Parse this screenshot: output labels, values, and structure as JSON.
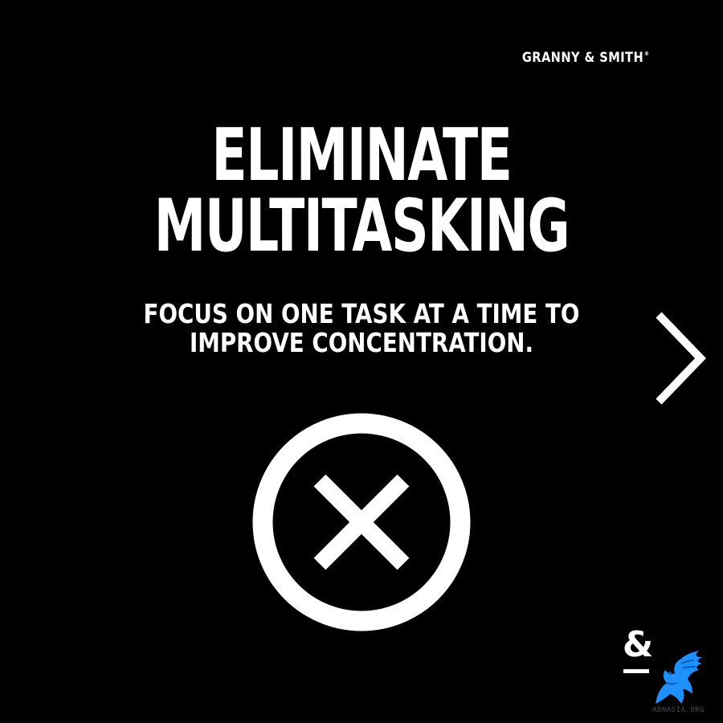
{
  "brand": {
    "name": "GRANNY & SMITH",
    "registered_mark": "®"
  },
  "headline": {
    "lines": [
      "ELIMINATE",
      "MULTITASKING"
    ]
  },
  "subheadline": {
    "lines": [
      "FOCUS ON ONE TASK AT A TIME TO",
      "IMPROVE CONCENTRATION."
    ]
  },
  "icons": {
    "next": "chevron-right-icon",
    "center": "circled-x-icon",
    "corner_logo": "ampersand-logo",
    "watermark": "griffin-logo"
  },
  "corner_logo": {
    "glyph": "&"
  },
  "watermark": {
    "text": "ABNASIA.ORG"
  },
  "colors": {
    "background": "#000000",
    "foreground": "#ffffff",
    "watermark_blue": "#1e90ff"
  }
}
